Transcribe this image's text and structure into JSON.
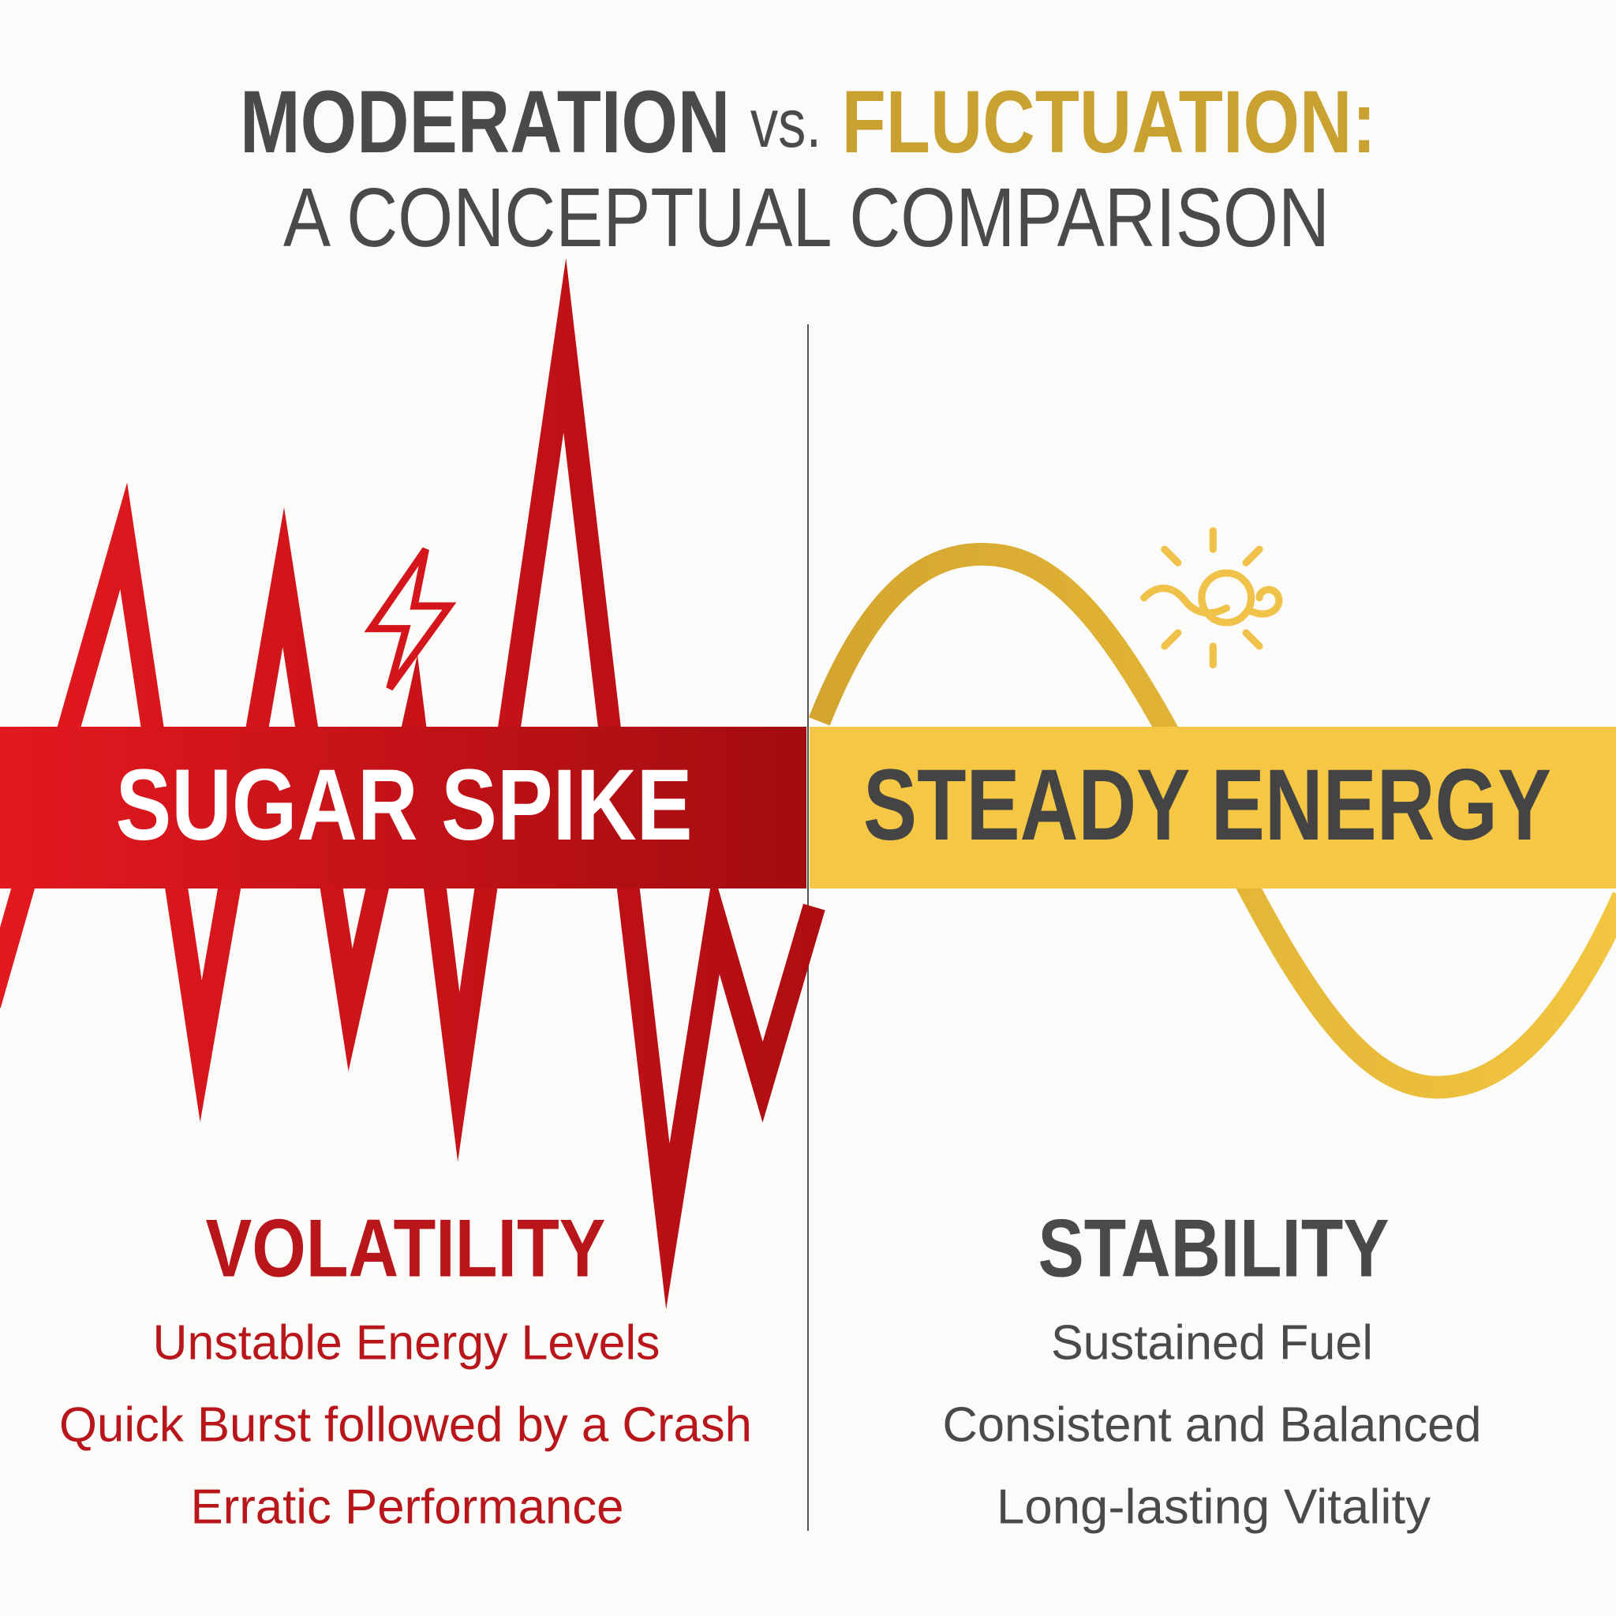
{
  "header": {
    "title": {
      "part1": "MODERATION",
      "part2": "vs.",
      "part3": "FLUCTUATION:"
    },
    "subtitle": "A CONCEPTUAL COMPARISON"
  },
  "panels": [
    {
      "banner": "SUGAR SPIKE",
      "heading": "VOLATILITY",
      "items": [
        "Unstable Energy Levels",
        "Quick Burst followed by a Crash",
        "Erratic Performance"
      ]
    },
    {
      "banner": "STEADY ENERGY",
      "heading": "STABILITY",
      "items": [
        "Sustained Fuel",
        "Consistent and Balanced",
        "Long-lasting Vitality"
      ]
    }
  ]
}
